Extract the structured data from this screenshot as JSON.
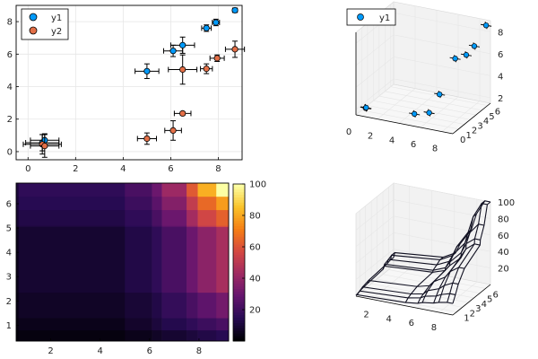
{
  "colors": {
    "y1": "#009AFA",
    "y2": "#E36F47",
    "marker_stroke": "#000000",
    "grid": "#E6E6E6",
    "axis": "#000000",
    "wire": "#111122"
  },
  "chart_data": [
    {
      "type": "scatter",
      "title": "",
      "xlabel": "",
      "ylabel": "",
      "xlim": [
        -0.5,
        9.0
      ],
      "ylim": [
        -0.5,
        9.0
      ],
      "xticks": [
        "0",
        "2",
        "4",
        "6",
        "8"
      ],
      "yticks": [
        "0",
        "2",
        "4",
        "6",
        "8"
      ],
      "grid": true,
      "legend": "top-left",
      "series": [
        {
          "name": "y1",
          "points": [
            {
              "x": 0.6,
              "y": 0.55,
              "xerr": 0.7,
              "yerr": 0.5
            },
            {
              "x": 0.7,
              "y": 0.7,
              "xerr": 0.6,
              "yerr": 0.4
            },
            {
              "x": 5.0,
              "y": 4.95,
              "xerr": 0.5,
              "yerr": 0.45
            },
            {
              "x": 6.1,
              "y": 6.2,
              "xerr": 0.4,
              "yerr": 0.35
            },
            {
              "x": 6.5,
              "y": 6.55,
              "xerr": 0.5,
              "yerr": 0.5
            },
            {
              "x": 7.5,
              "y": 7.6,
              "xerr": 0.2,
              "yerr": 0.2
            },
            {
              "x": 7.9,
              "y": 7.95,
              "xerr": 0.15,
              "yerr": 0.2
            },
            {
              "x": 8.7,
              "y": 8.7,
              "xerr": 0.1,
              "yerr": 0.1
            }
          ]
        },
        {
          "name": "y2",
          "points": [
            {
              "x": 0.6,
              "y": 0.45,
              "xerr": 0.8,
              "yerr": 0.6
            },
            {
              "x": 0.7,
              "y": 0.35,
              "xerr": 0.6,
              "yerr": 0.7
            },
            {
              "x": 5.0,
              "y": 0.8,
              "xerr": 0.4,
              "yerr": 0.35
            },
            {
              "x": 6.1,
              "y": 1.3,
              "xerr": 0.35,
              "yerr": 0.6
            },
            {
              "x": 6.5,
              "y": 5.05,
              "xerr": 0.6,
              "yerr": 0.9
            },
            {
              "x": 6.5,
              "y": 2.35,
              "xerr": 0.35,
              "yerr": 0.1
            },
            {
              "x": 7.5,
              "y": 5.1,
              "xerr": 0.25,
              "yerr": 0.3
            },
            {
              "x": 7.95,
              "y": 5.75,
              "xerr": 0.3,
              "yerr": 0.2
            },
            {
              "x": 8.7,
              "y": 6.3,
              "xerr": 0.4,
              "yerr": 0.5
            }
          ]
        }
      ]
    },
    {
      "type": "scatter",
      "title": "",
      "legend": "top-left",
      "xticks": [
        "0",
        "2",
        "4",
        "6",
        "8"
      ],
      "yticks": [
        "0",
        "1",
        "2",
        "3",
        "4",
        "5",
        "6"
      ],
      "zticks": [
        "2",
        "4",
        "6",
        "8"
      ],
      "xlim": [
        0,
        9
      ],
      "ylim": [
        0,
        6.5
      ],
      "zlim": [
        1.5,
        9
      ],
      "series": [
        {
          "name": "y1",
          "points": [
            {
              "x": 0.6,
              "y": 0.55,
              "z": 2.0
            },
            {
              "x": 0.7,
              "y": 0.45,
              "z": 2.1
            },
            {
              "x": 5.0,
              "y": 0.8,
              "z": 2.2
            },
            {
              "x": 6.1,
              "y": 1.3,
              "z": 2.3
            },
            {
              "x": 6.5,
              "y": 2.35,
              "z": 3.6
            },
            {
              "x": 6.5,
              "y": 5.05,
              "z": 5.7
            },
            {
              "x": 7.5,
              "y": 5.1,
              "z": 6.2
            },
            {
              "x": 7.9,
              "y": 5.75,
              "z": 6.8
            },
            {
              "x": 8.7,
              "y": 6.3,
              "z": 8.6
            }
          ]
        }
      ]
    },
    {
      "type": "heatmap",
      "title": "",
      "xticks": [
        "2",
        "4",
        "6",
        "8"
      ],
      "yticks": [
        "1",
        "2",
        "3",
        "4",
        "5",
        "6"
      ],
      "x_edges": [
        0.6,
        0.7,
        5.0,
        6.1,
        6.5,
        7.5,
        7.95,
        8.7,
        9.2
      ],
      "y_edges": [
        0.35,
        0.8,
        1.3,
        2.35,
        5.05,
        5.1,
        5.75,
        6.3,
        6.85
      ],
      "colorbar": {
        "min": 0,
        "max": 100,
        "ticks": [
          "20",
          "40",
          "60",
          "80",
          "100"
        ]
      },
      "values": [
        [
          1,
          2,
          4,
          6,
          8,
          10,
          12,
          14
        ],
        [
          2,
          4,
          7,
          10,
          13,
          16,
          19,
          22
        ],
        [
          3,
          6,
          9,
          12,
          17,
          22,
          27,
          32
        ],
        [
          4,
          8,
          12,
          16,
          22,
          30,
          38,
          45
        ],
        [
          6,
          10,
          14,
          19,
          26,
          38,
          50,
          58
        ],
        [
          8,
          12,
          16,
          22,
          30,
          44,
          56,
          64
        ],
        [
          9,
          14,
          19,
          26,
          36,
          52,
          66,
          78
        ],
        [
          10,
          16,
          22,
          30,
          42,
          62,
          82,
          100
        ]
      ]
    },
    {
      "type": "surface",
      "title": "",
      "xticks": [
        "2",
        "4",
        "6",
        "8"
      ],
      "yticks": [
        "1",
        "2",
        "3",
        "4",
        "5",
        "6"
      ],
      "zticks": [
        "20",
        "40",
        "60",
        "80",
        "100"
      ],
      "xs": [
        0.6,
        0.7,
        5.0,
        6.1,
        6.5,
        7.5,
        7.95,
        8.7,
        9.2
      ],
      "ys": [
        0.35,
        0.8,
        1.3,
        2.35,
        5.05,
        5.1,
        5.75,
        6.3,
        6.85
      ],
      "zlim": [
        0,
        100
      ],
      "values_ref": "same grid as heatmap"
    }
  ]
}
